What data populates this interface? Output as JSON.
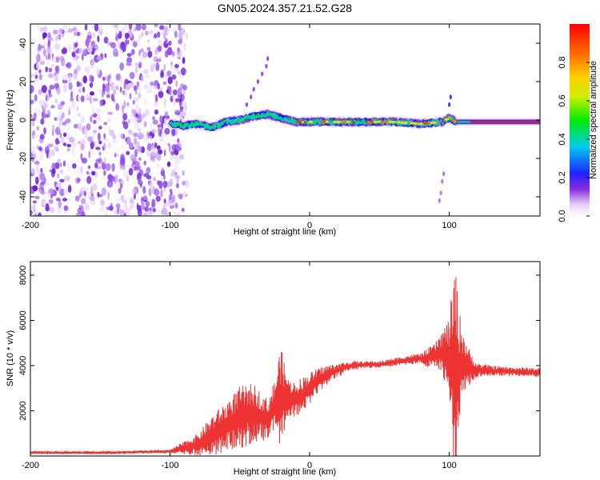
{
  "title": "GN05.2024.357.21.52.G28",
  "chart_data": [
    {
      "type": "heatmap",
      "name": "spectrogram",
      "xlabel": "Height of straight line (km)",
      "ylabel": "Frequency (Hz)",
      "xlim": [
        -200,
        165
      ],
      "ylim": [
        -50,
        50
      ],
      "xticks": [
        -200,
        -100,
        0,
        100
      ],
      "xtick_labels": [
        "-200",
        "-100",
        "0",
        "100"
      ],
      "yticks": [
        -40,
        -20,
        0,
        20,
        40
      ],
      "ytick_labels": [
        "-40",
        "-20",
        "0",
        "20",
        "40"
      ],
      "noise_region_x": [
        -200,
        -90
      ],
      "ridge": {
        "description_points_x": [
          -100,
          -90,
          -80,
          -70,
          -60,
          -50,
          -40,
          -30,
          -20,
          -10,
          0,
          20,
          40,
          60,
          80,
          95,
          100,
          105,
          120,
          165
        ],
        "description_points_f": [
          -2,
          -3,
          -2,
          -4,
          -1,
          0,
          2,
          3,
          1,
          -1,
          -1,
          -1,
          -1,
          -1,
          -2,
          -1,
          1,
          -1,
          -1,
          -1
        ]
      },
      "colorbar": {
        "label": "Normalized spectral amplitude",
        "range": [
          0,
          1
        ],
        "ticks": [
          0.0,
          0.2,
          0.4,
          0.6,
          0.8
        ],
        "tick_labels": [
          "0.0",
          "0.2",
          "0.4",
          "0.6",
          "0.8"
        ]
      }
    },
    {
      "type": "line",
      "name": "snr",
      "xlabel": "Height of straight line (km)",
      "ylabel": "SNR (10 * v/v)",
      "xlim": [
        -200,
        165
      ],
      "ylim": [
        0,
        8600
      ],
      "xticks": [
        -200,
        -100,
        0,
        100
      ],
      "xtick_labels": [
        "-200",
        "-100",
        "0",
        "100"
      ],
      "yticks": [
        2000,
        4000,
        6000,
        8000
      ],
      "ytick_labels": [
        "2000",
        "4000",
        "6000",
        "8000"
      ],
      "color": "#ee3333",
      "envelope_x": [
        -200,
        -140,
        -100,
        -80,
        -70,
        -60,
        -50,
        -40,
        -30,
        -25,
        -21,
        -15,
        -10,
        0,
        10,
        20,
        30,
        40,
        50,
        60,
        70,
        80,
        90,
        95,
        100,
        103,
        105,
        107,
        110,
        115,
        120,
        140,
        165
      ],
      "envelope_mean": [
        150,
        150,
        200,
        500,
        900,
        1300,
        1700,
        1900,
        1600,
        2200,
        2600,
        2600,
        2500,
        3000,
        3500,
        3800,
        4000,
        4050,
        4050,
        4150,
        4250,
        4300,
        4400,
        4600,
        4300,
        3800,
        3700,
        3900,
        4100,
        3900,
        3800,
        3750,
        3700
      ],
      "envelope_amp": [
        60,
        60,
        80,
        500,
        900,
        1100,
        1400,
        1300,
        900,
        1200,
        2300,
        800,
        800,
        700,
        500,
        300,
        200,
        150,
        150,
        180,
        200,
        250,
        600,
        1000,
        1800,
        4200,
        4600,
        2600,
        1500,
        700,
        300,
        200,
        200
      ]
    }
  ],
  "colors": {
    "line": "#ee3333",
    "axis": "#000000",
    "background": "#ffffff"
  }
}
